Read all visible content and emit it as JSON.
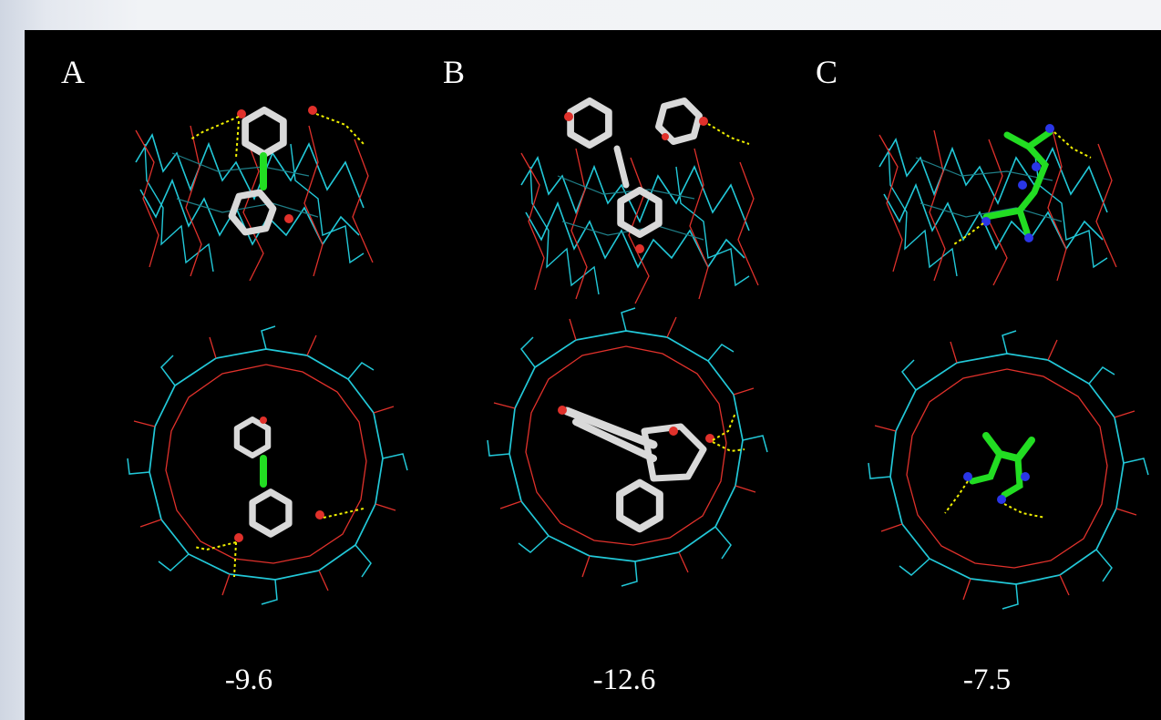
{
  "panels": [
    {
      "letter": "A",
      "energy": "-9.6",
      "ligand_color": "#d9d9d9"
    },
    {
      "letter": "B",
      "energy": "-12.6",
      "ligand_color": "#d9d9d9"
    },
    {
      "letter": "C",
      "energy": "-7.5",
      "ligand_color": "#22dd22"
    }
  ],
  "colors": {
    "background": "#000000",
    "host_carbon": "#22c8d8",
    "host_oxygen": "#e0312b",
    "ligand_carbon_grey": "#d9d9d9",
    "ligand_carbon_green": "#22dd22",
    "nitrogen": "#2a36e8",
    "hydrogen_bond": "#f0f000"
  }
}
